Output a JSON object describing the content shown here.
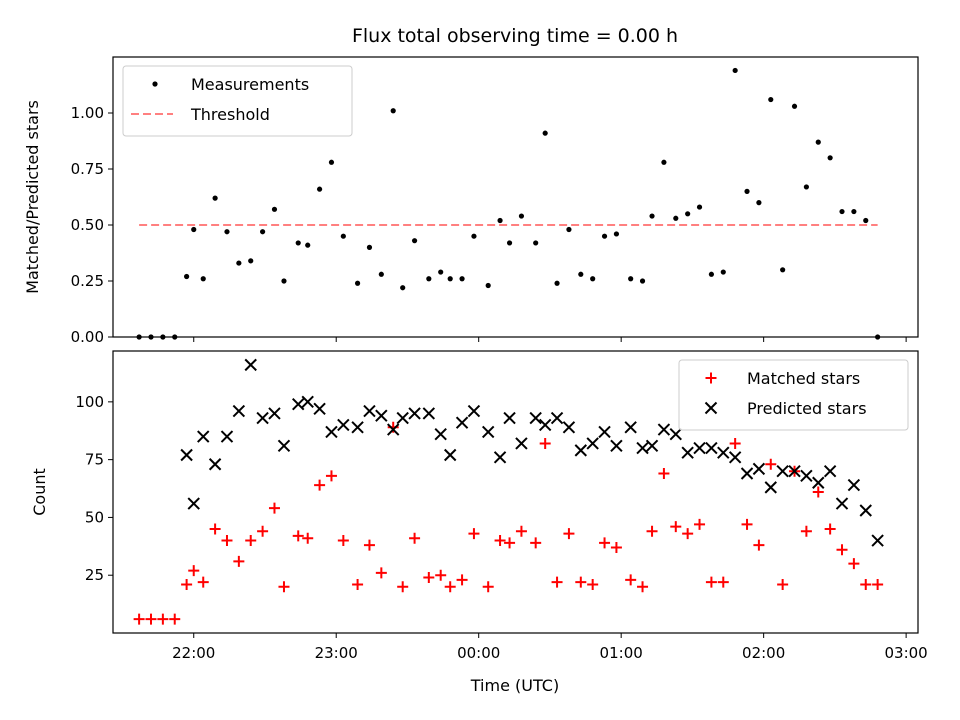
{
  "chart_data": [
    {
      "type": "scatter",
      "title": "Flux total observing time = 0.00 h",
      "xlabel": "",
      "ylabel": "Matched/Predicted stars",
      "xlim": [
        "21:26",
        "03:05"
      ],
      "ylim": [
        0,
        1.25
      ],
      "x_ticks": [
        "22:00",
        "23:00",
        "00:00",
        "01:00",
        "02:00",
        "03:00"
      ],
      "y_ticks": [
        "0.00",
        "0.25",
        "0.50",
        "0.75",
        "1.00"
      ],
      "legend_position": "top-left",
      "grid": false,
      "series": [
        {
          "name": "Measurements",
          "marker": "dot",
          "color": "#000000",
          "x": [
            "21:37",
            "21:42",
            "21:47",
            "21:52",
            "21:57",
            "22:00",
            "22:04",
            "22:09",
            "22:14",
            "22:19",
            "22:24",
            "22:29",
            "22:34",
            "22:38",
            "22:44",
            "22:48",
            "22:53",
            "22:58",
            "23:03",
            "23:09",
            "23:14",
            "23:19",
            "23:24",
            "23:28",
            "23:33",
            "23:39",
            "23:44",
            "23:48",
            "23:53",
            "23:58",
            "00:04",
            "00:09",
            "00:13",
            "00:18",
            "00:24",
            "00:28",
            "00:33",
            "00:38",
            "00:43",
            "00:48",
            "00:53",
            "00:58",
            "01:04",
            "01:09",
            "01:13",
            "01:18",
            "01:23",
            "01:28",
            "01:33",
            "01:38",
            "01:43",
            "01:48",
            "01:53",
            "01:58",
            "02:03",
            "02:08",
            "02:13",
            "02:18",
            "02:23",
            "02:28",
            "02:33",
            "02:38",
            "02:43",
            "02:48"
          ],
          "y": [
            0.0,
            0.0,
            0.0,
            0.0,
            0.27,
            0.48,
            0.26,
            0.62,
            0.47,
            0.33,
            0.34,
            0.47,
            0.57,
            0.25,
            0.42,
            0.41,
            0.66,
            0.78,
            0.45,
            0.24,
            0.4,
            0.28,
            1.01,
            0.22,
            0.43,
            0.26,
            0.29,
            0.26,
            0.26,
            0.45,
            0.23,
            0.52,
            0.42,
            0.54,
            0.42,
            0.91,
            0.24,
            0.48,
            0.28,
            0.26,
            0.45,
            0.46,
            0.26,
            0.25,
            0.54,
            0.78,
            0.53,
            0.55,
            0.58,
            0.28,
            0.29,
            1.19,
            0.65,
            0.6,
            1.06,
            0.3,
            1.03,
            0.67,
            0.87,
            0.8,
            0.56,
            0.56,
            0.52,
            0.0
          ]
        },
        {
          "name": "Threshold",
          "type": "line",
          "style": "dashed",
          "color": "#ff8080",
          "x": [
            "21:37",
            "02:48"
          ],
          "y": [
            0.5,
            0.5
          ]
        }
      ]
    },
    {
      "type": "scatter",
      "title": "",
      "xlabel": "Time (UTC)",
      "ylabel": "Count",
      "xlim": [
        "21:26",
        "03:05"
      ],
      "ylim": [
        0,
        122
      ],
      "x_ticks": [
        "22:00",
        "23:00",
        "00:00",
        "01:00",
        "02:00",
        "03:00"
      ],
      "y_ticks": [
        "25",
        "50",
        "75",
        "100"
      ],
      "legend_position": "top-right",
      "grid": false,
      "series": [
        {
          "name": "Matched stars",
          "marker": "plus",
          "color": "#ff0000",
          "x": [
            "21:37",
            "21:42",
            "21:47",
            "21:52",
            "21:57",
            "22:00",
            "22:04",
            "22:09",
            "22:14",
            "22:19",
            "22:24",
            "22:29",
            "22:34",
            "22:38",
            "22:44",
            "22:48",
            "22:53",
            "22:58",
            "23:03",
            "23:09",
            "23:14",
            "23:19",
            "23:24",
            "23:28",
            "23:33",
            "23:39",
            "23:44",
            "23:48",
            "23:53",
            "23:58",
            "00:04",
            "00:09",
            "00:13",
            "00:18",
            "00:24",
            "00:28",
            "00:33",
            "00:38",
            "00:43",
            "00:48",
            "00:53",
            "00:58",
            "01:04",
            "01:09",
            "01:13",
            "01:18",
            "01:23",
            "01:28",
            "01:33",
            "01:38",
            "01:43",
            "01:48",
            "01:53",
            "01:58",
            "02:03",
            "02:08",
            "02:13",
            "02:18",
            "02:23",
            "02:28",
            "02:33",
            "02:38",
            "02:43",
            "02:48"
          ],
          "y": [
            6,
            6,
            6,
            6,
            21,
            27,
            22,
            45,
            40,
            31,
            40,
            44,
            54,
            20,
            42,
            41,
            64,
            68,
            40,
            21,
            38,
            26,
            89,
            20,
            41,
            24,
            25,
            20,
            23,
            43,
            20,
            40,
            39,
            44,
            39,
            82,
            22,
            43,
            22,
            21,
            39,
            37,
            23,
            20,
            44,
            69,
            46,
            43,
            47,
            22,
            22,
            82,
            47,
            38,
            73,
            21,
            70,
            44,
            61,
            45,
            36,
            30,
            21,
            21
          ]
        },
        {
          "name": "Predicted stars",
          "marker": "x",
          "color": "#000000",
          "x": [
            "21:57",
            "22:00",
            "22:04",
            "22:09",
            "22:14",
            "22:19",
            "22:24",
            "22:29",
            "22:34",
            "22:38",
            "22:44",
            "22:48",
            "22:53",
            "22:58",
            "23:03",
            "23:09",
            "23:14",
            "23:19",
            "23:24",
            "23:28",
            "23:33",
            "23:39",
            "23:44",
            "23:48",
            "23:53",
            "23:58",
            "00:04",
            "00:09",
            "00:13",
            "00:18",
            "00:24",
            "00:28",
            "00:33",
            "00:38",
            "00:43",
            "00:48",
            "00:53",
            "00:58",
            "01:04",
            "01:09",
            "01:13",
            "01:18",
            "01:23",
            "01:28",
            "01:33",
            "01:38",
            "01:43",
            "01:48",
            "01:53",
            "01:58",
            "02:03",
            "02:08",
            "02:13",
            "02:18",
            "02:23",
            "02:28",
            "02:33",
            "02:38",
            "02:43"
          ],
          "y": [
            77,
            56,
            85,
            73,
            85,
            96,
            116,
            93,
            95,
            81,
            99,
            100,
            97,
            87,
            90,
            89,
            96,
            94,
            88,
            93,
            95,
            95,
            86,
            77,
            91,
            96,
            87,
            76,
            93,
            82,
            93,
            90,
            93,
            89,
            79,
            82,
            87,
            81,
            89,
            80,
            81,
            88,
            86,
            78,
            80,
            80,
            78,
            76,
            69,
            71,
            63,
            70,
            70,
            68,
            65,
            70,
            56,
            64,
            53
          ]
        },
        {
          "name": "",
          "marker": "x",
          "color": "#000000",
          "x": [
            "02:48"
          ],
          "y": [
            40
          ]
        }
      ]
    }
  ]
}
